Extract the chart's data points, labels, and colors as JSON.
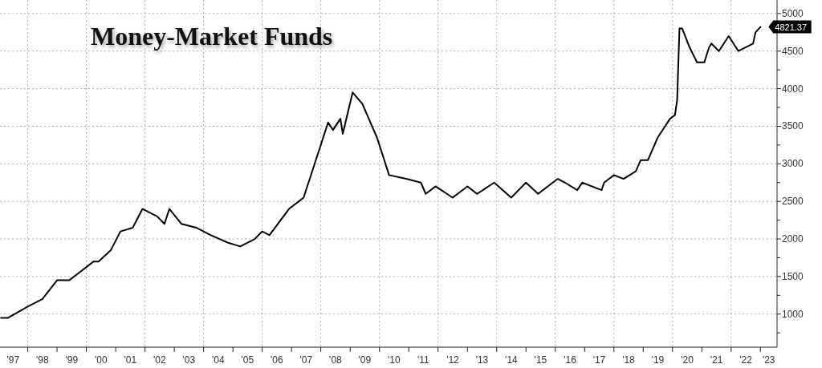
{
  "chart_data": {
    "type": "line",
    "title": "Money-Market Funds",
    "x": [
      "1997-02",
      "1997-05",
      "1998-01",
      "1998-07",
      "1999-01",
      "1999-06",
      "1999-10",
      "2000-04",
      "2000-06",
      "2000-11",
      "2001-03",
      "2001-08",
      "2001-12",
      "2002-06",
      "2002-09",
      "2002-11",
      "2003-04",
      "2003-10",
      "2004-04",
      "2004-11",
      "2005-04",
      "2005-10",
      "2006-01",
      "2006-04",
      "2006-12",
      "2007-06",
      "2007-12",
      "2008-04",
      "2008-06",
      "2008-09",
      "2008-10",
      "2009-02",
      "2009-06",
      "2009-12",
      "2010-05",
      "2010-12",
      "2011-06",
      "2011-08",
      "2011-12",
      "2012-07",
      "2013-01",
      "2013-05",
      "2013-12",
      "2014-07",
      "2015-01",
      "2015-06",
      "2015-12",
      "2016-02",
      "2016-05",
      "2016-10",
      "2016-12",
      "2017-08",
      "2017-09",
      "2018-01",
      "2018-05",
      "2018-10",
      "2018-12",
      "2019-03",
      "2019-07",
      "2019-12",
      "2020-02",
      "2020-02-28",
      "2020-03-28",
      "2020-05",
      "2020-08",
      "2020-11",
      "2021-02",
      "2021-04",
      "2021-05",
      "2021-08",
      "2021-12",
      "2022-04",
      "2022-10",
      "2022-11",
      "2023-01"
    ],
    "series": [
      {
        "color": "#000000",
        "values": [
          950,
          950,
          1100,
          1200,
          1450,
          1450,
          1550,
          1700,
          1700,
          1850,
          2100,
          2150,
          2400,
          2300,
          2200,
          2400,
          2200,
          2150,
          2050,
          1950,
          1900,
          2000,
          2100,
          2050,
          2400,
          2550,
          3150,
          3550,
          3450,
          3600,
          3400,
          3950,
          3800,
          3350,
          2850,
          2800,
          2750,
          2600,
          2700,
          2550,
          2700,
          2600,
          2750,
          2550,
          2750,
          2600,
          2750,
          2800,
          2750,
          2650,
          2750,
          2650,
          2750,
          2850,
          2800,
          2900,
          3050,
          3050,
          3350,
          3600,
          3650,
          3850,
          4800,
          4800,
          4550,
          4350,
          4350,
          4550,
          4600,
          4500,
          4700,
          4500,
          4600,
          4750,
          4821.37
        ]
      }
    ],
    "xlim": [
      "1997-01-20",
      "2023-07-27"
    ],
    "xticks": [
      {
        "value": "1998-01-01",
        "label": null
      },
      {
        "value": "1999-01-01",
        "label": null
      },
      {
        "value": "2000-01-01",
        "label": null
      },
      {
        "value": "2001-01-01",
        "label": null
      },
      {
        "value": "2002-01-01",
        "label": null
      },
      {
        "value": "2003-01-01",
        "label": null
      },
      {
        "value": "2004-01-01",
        "label": null
      },
      {
        "value": "2005-01-01",
        "label": null
      },
      {
        "value": "2006-01-01",
        "label": null
      },
      {
        "value": "2007-01-01",
        "label": null
      },
      {
        "value": "2008-01-01",
        "label": null
      },
      {
        "value": "2009-01-01",
        "label": null
      },
      {
        "value": "2010-01-01",
        "label": null
      },
      {
        "value": "2011-01-01",
        "label": null
      },
      {
        "value": "2012-01-01",
        "label": null
      },
      {
        "value": "2013-01-01",
        "label": null
      },
      {
        "value": "2014-01-01",
        "label": null
      },
      {
        "value": "2015-01-01",
        "label": null
      },
      {
        "value": "2016-01-01",
        "label": null
      },
      {
        "value": "2017-01-01",
        "label": null
      },
      {
        "value": "2018-01-01",
        "label": null
      },
      {
        "value": "2019-01-01",
        "label": null
      },
      {
        "value": "2020-01-01",
        "label": null
      },
      {
        "value": "2021-01-01",
        "label": null
      },
      {
        "value": "2022-01-01",
        "label": null
      },
      {
        "value": "2023-01-01",
        "label": null
      },
      {
        "value": "1997-07-02",
        "label": "'97"
      },
      {
        "value": "1998-07-02",
        "label": "'98"
      },
      {
        "value": "1999-07-02",
        "label": "'99"
      },
      {
        "value": "2000-07-02",
        "label": "'00"
      },
      {
        "value": "2001-07-02",
        "label": "'01"
      },
      {
        "value": "2002-07-02",
        "label": "'02"
      },
      {
        "value": "2003-07-02",
        "label": "'03"
      },
      {
        "value": "2004-07-02",
        "label": "'04"
      },
      {
        "value": "2005-07-02",
        "label": "'05"
      },
      {
        "value": "2006-07-02",
        "label": "'06"
      },
      {
        "value": "2007-07-02",
        "label": "'07"
      },
      {
        "value": "2008-07-02",
        "label": "'08"
      },
      {
        "value": "2009-07-02",
        "label": "'09"
      },
      {
        "value": "2010-07-02",
        "label": "'10"
      },
      {
        "value": "2011-07-02",
        "label": "'11"
      },
      {
        "value": "2012-07-02",
        "label": "'12"
      },
      {
        "value": "2013-07-02",
        "label": "'13"
      },
      {
        "value": "2014-07-02",
        "label": "'14"
      },
      {
        "value": "2015-07-02",
        "label": "'15"
      },
      {
        "value": "2016-07-02",
        "label": "'16"
      },
      {
        "value": "2017-07-02",
        "label": "'17"
      },
      {
        "value": "2018-07-02",
        "label": "'18"
      },
      {
        "value": "2019-07-02",
        "label": "'19"
      },
      {
        "value": "2020-07-02",
        "label": "'20"
      },
      {
        "value": "2021-07-02",
        "label": "'21"
      },
      {
        "value": "2022-07-02",
        "label": "'22"
      },
      {
        "value": "2023-04-15",
        "label": "'23"
      }
    ],
    "ylim": [
      560,
      5180
    ],
    "yticks": [
      {
        "value": 750,
        "label": null
      },
      1000,
      {
        "value": 1250,
        "label": null
      },
      1500,
      {
        "value": 1750,
        "label": null
      },
      2000,
      {
        "value": 2250,
        "label": null
      },
      2500,
      {
        "value": 2750,
        "label": null
      },
      3000,
      {
        "value": 3250,
        "label": null
      },
      3500,
      {
        "value": 3750,
        "label": null
      },
      4000,
      {
        "value": 4250,
        "label": null
      },
      4500,
      {
        "value": 4750,
        "label": null
      },
      5000
    ],
    "grid": true,
    "annotations": [
      {
        "text": "4821.37",
        "x": "2023-01",
        "y": 4821.37
      }
    ]
  }
}
